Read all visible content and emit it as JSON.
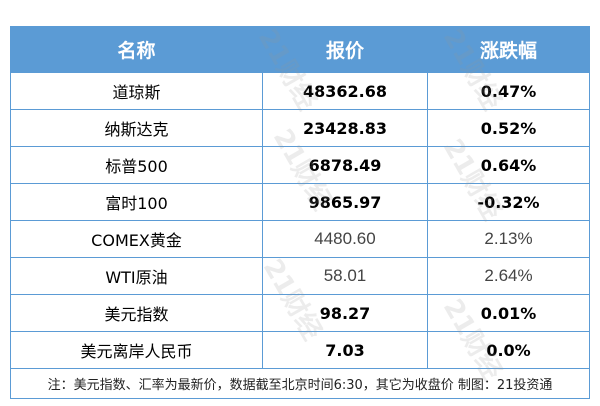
{
  "headers": [
    "名称",
    "报价",
    "涨跌幅"
  ],
  "rows": [
    {
      "name": "道琼斯",
      "price": "48362.68",
      "change": "0.47%"
    },
    {
      "name": "纳斯达克",
      "price": "23428.83",
      "change": "0.52%"
    },
    {
      "name": "标普500",
      "price": "6878.49",
      "change": "0.64%"
    },
    {
      "name": "富时100",
      "price": "9865.97",
      "change": "-0.32%"
    },
    {
      "name": "COMEX黄金",
      "price": "4480.60",
      "change": "2.13%"
    },
    {
      "name": "WTI原油",
      "price": "58.01",
      "change": "2.64%"
    },
    {
      "name": "美元指数",
      "price": "98.27",
      "change": "0.01%"
    },
    {
      "name": "美元离岸人民币",
      "price": "7.03",
      "change": "0.0%"
    }
  ],
  "note": "注：美元指数、汇率为最新价，数据截至北京时间6:30，其它为收盘价 制图：21投资通",
  "watermark": "21财经",
  "colors": {
    "header_bg": "#5b9bd5",
    "border": "#5b9bd5"
  }
}
